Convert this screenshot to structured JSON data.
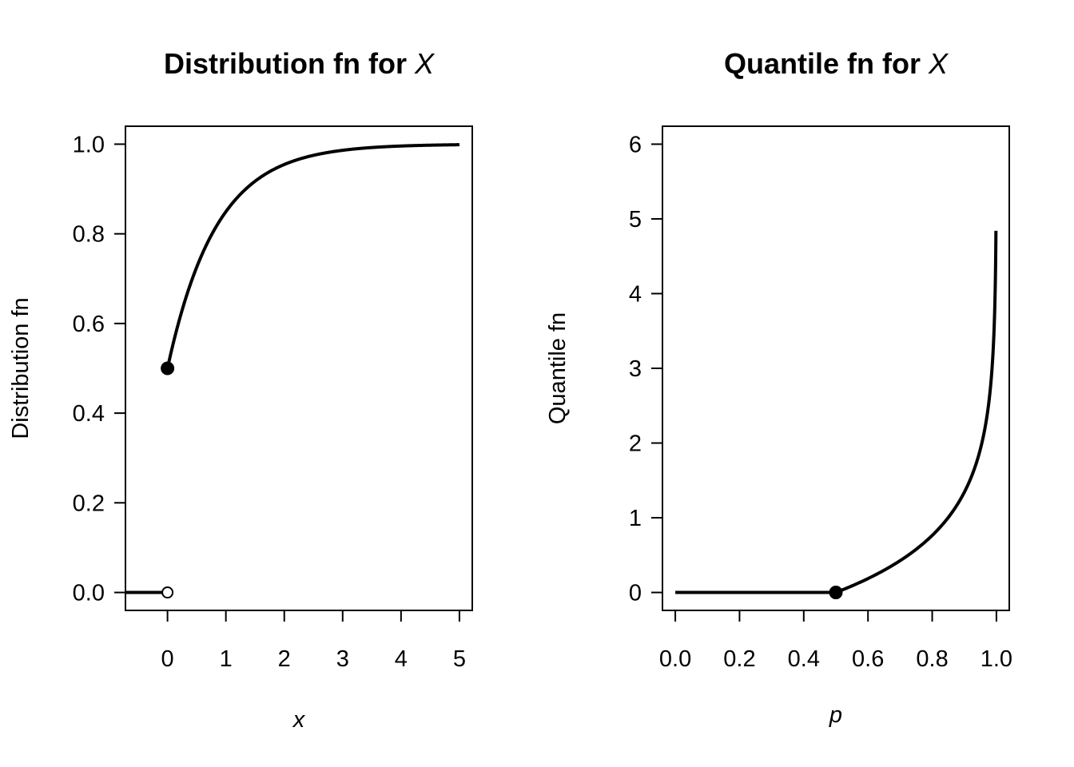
{
  "chart_data": [
    {
      "type": "line",
      "title": "Distribution fn for ",
      "title_var": "X",
      "xlabel": "x",
      "ylabel": "Distribution fn",
      "xlim": [
        -0.72,
        5.22
      ],
      "ylim": [
        -0.04,
        1.04
      ],
      "xticks": [
        0,
        1,
        2,
        3,
        4,
        5
      ],
      "xtick_labels": [
        "0",
        "1",
        "2",
        "3",
        "4",
        "5"
      ],
      "yticks": [
        0.0,
        0.2,
        0.4,
        0.6,
        0.8,
        1.0
      ],
      "ytick_labels": [
        "0.0",
        "0.2",
        "0.4",
        "0.6",
        "0.8",
        "1.0"
      ],
      "grid": false,
      "series": [
        {
          "x": [
            -0.72,
            0
          ],
          "y": [
            0,
            0
          ]
        },
        {
          "function": "1 - 0.5*exp(-1.2*x)",
          "x_range": [
            0,
            5
          ]
        }
      ],
      "points": [
        {
          "x": 0,
          "y": 0,
          "style": "open"
        },
        {
          "x": 0,
          "y": 0.5,
          "style": "filled"
        }
      ]
    },
    {
      "type": "line",
      "title": "Quantile fn for ",
      "title_var": "X",
      "xlabel": "p",
      "ylabel": "Quantile fn",
      "xlim": [
        -0.04,
        1.04
      ],
      "ylim": [
        -0.24,
        6.24
      ],
      "xticks": [
        0.0,
        0.2,
        0.4,
        0.6,
        0.8,
        1.0
      ],
      "xtick_labels": [
        "0.0",
        "0.2",
        "0.4",
        "0.6",
        "0.8",
        "1.0"
      ],
      "yticks": [
        0,
        1,
        2,
        3,
        4,
        5,
        6
      ],
      "ytick_labels": [
        "0",
        "1",
        "2",
        "3",
        "4",
        "5",
        "6"
      ],
      "grid": false,
      "series": [
        {
          "x": [
            0,
            0.5
          ],
          "y": [
            0,
            0
          ]
        },
        {
          "function": "-ln(2*(1-p))/1.2",
          "x_range": [
            0.5,
            0.9985
          ]
        }
      ],
      "points": [
        {
          "x": 0.5,
          "y": 0,
          "style": "filled"
        }
      ]
    }
  ]
}
